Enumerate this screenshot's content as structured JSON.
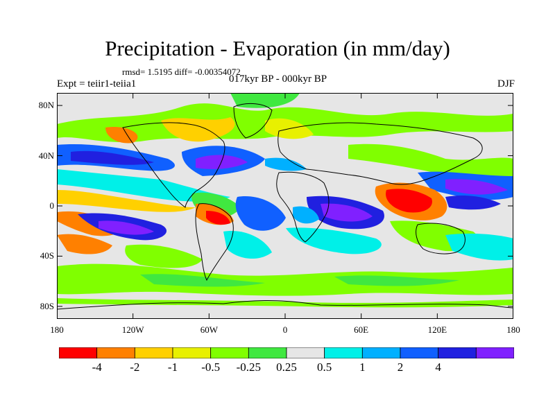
{
  "title": "Precipitation - Evaporation (in mm/day)",
  "stats": "rmsd= 1.5195  diff= -0.00354072",
  "subtitle": "017kyr BP - 000kyr BP",
  "expt": "Expt = teiir1-teiia1",
  "season": "DJF",
  "map": {
    "lon_range": [
      -180,
      180
    ],
    "lat_range": [
      -90,
      90
    ],
    "lat_ticks": [
      {
        "label": "80N",
        "lat": 80
      },
      {
        "label": "40N",
        "lat": 40
      },
      {
        "label": "0",
        "lat": 0
      },
      {
        "label": "40S",
        "lat": -40
      },
      {
        "label": "80S",
        "lat": -80
      }
    ],
    "lon_ticks": [
      {
        "label": "180",
        "lon": -180
      },
      {
        "label": "120W",
        "lon": -120
      },
      {
        "label": "60W",
        "lon": -60
      },
      {
        "label": "0",
        "lon": 0
      },
      {
        "label": "60E",
        "lon": 60
      },
      {
        "label": "120E",
        "lon": 120
      },
      {
        "label": "180",
        "lon": 180
      }
    ]
  },
  "colorbar": {
    "colors": [
      "#ff0000",
      "#ff8000",
      "#ffd000",
      "#e8f000",
      "#80ff00",
      "#40e840",
      "#e6e6e6",
      "#00f0e8",
      "#00b0ff",
      "#1060ff",
      "#2020e0",
      "#8020ff"
    ],
    "labels": [
      "-4",
      "-2",
      "-1",
      "-0.5",
      "-0.25",
      "0.25",
      "0.5",
      "1",
      "2",
      "4"
    ]
  }
}
